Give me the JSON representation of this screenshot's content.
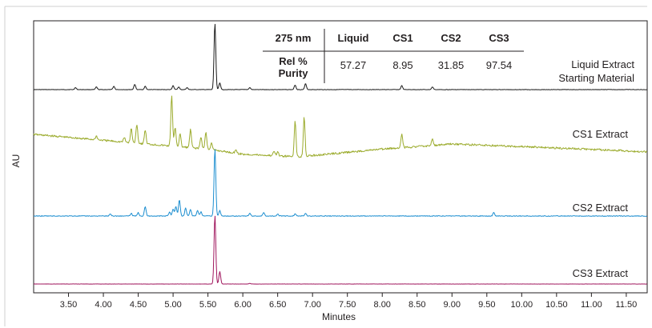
{
  "chart_data": {
    "type": "line",
    "xlabel": "Minutes",
    "ylabel": "AU",
    "xlim": [
      3.0,
      11.8
    ],
    "x_ticks": [
      "3.50",
      "4.00",
      "4.50",
      "5.00",
      "5.50",
      "6.00",
      "6.50",
      "7.00",
      "7.50",
      "8.00",
      "8.50",
      "9.00",
      "9.50",
      "10.00",
      "10.50",
      "11.00",
      "11.50"
    ],
    "x_tick_values": [
      3.5,
      4.0,
      4.5,
      5.0,
      5.5,
      6.0,
      6.5,
      7.0,
      7.5,
      8.0,
      8.5,
      9.0,
      9.5,
      10.0,
      10.5,
      11.0,
      11.5
    ],
    "table": {
      "wavelength": "275 nm",
      "columns": [
        "Liquid",
        "CS1",
        "CS2",
        "CS3"
      ],
      "row_label_line1": "Rel %",
      "row_label_line2": "Purity",
      "values": [
        "57.27",
        "8.95",
        "31.85",
        "97.54"
      ]
    },
    "series": [
      {
        "name": "Liquid Extract",
        "name_line2": "Starting Material",
        "color": "#1a1a1a",
        "baseline": [
          [
            3.0,
            0
          ],
          [
            11.8,
            0
          ]
        ],
        "peaks": [
          [
            3.6,
            0.03
          ],
          [
            3.9,
            0.04
          ],
          [
            4.15,
            0.05
          ],
          [
            4.45,
            0.08
          ],
          [
            4.6,
            0.05
          ],
          [
            5.0,
            0.06
          ],
          [
            5.08,
            0.04
          ],
          [
            5.2,
            0.03
          ],
          [
            5.6,
            1.0
          ],
          [
            5.67,
            0.1
          ],
          [
            6.1,
            0.03
          ],
          [
            6.75,
            0.07
          ],
          [
            6.9,
            0.09
          ],
          [
            8.28,
            0.06
          ],
          [
            8.72,
            0.04
          ]
        ]
      },
      {
        "name": "CS1 Extract",
        "color": "#9bab2c",
        "baseline": [
          [
            3.0,
            0.35
          ],
          [
            4.4,
            0.22
          ],
          [
            5.5,
            0.12
          ],
          [
            6.0,
            0.04
          ],
          [
            6.8,
            0.0
          ],
          [
            8.0,
            0.12
          ],
          [
            9.0,
            0.2
          ],
          [
            10.0,
            0.16
          ],
          [
            11.8,
            0.08
          ]
        ],
        "peaks": [
          [
            3.9,
            0.06
          ],
          [
            4.3,
            0.07
          ],
          [
            4.4,
            0.22
          ],
          [
            4.48,
            0.3
          ],
          [
            4.6,
            0.22
          ],
          [
            4.98,
            0.78
          ],
          [
            5.03,
            0.3
          ],
          [
            5.1,
            0.2
          ],
          [
            5.25,
            0.28
          ],
          [
            5.4,
            0.18
          ],
          [
            5.47,
            0.26
          ],
          [
            5.55,
            0.1
          ],
          [
            5.9,
            0.06
          ],
          [
            6.45,
            0.08
          ],
          [
            6.5,
            0.06
          ],
          [
            6.75,
            0.56
          ],
          [
            6.88,
            0.62
          ],
          [
            8.28,
            0.22
          ],
          [
            8.72,
            0.1
          ]
        ]
      },
      {
        "name": "CS2 Extract",
        "color": "#1c8ed0",
        "baseline": [
          [
            3.0,
            0
          ],
          [
            11.8,
            0
          ]
        ],
        "peaks": [
          [
            4.1,
            0.03
          ],
          [
            4.4,
            0.04
          ],
          [
            4.5,
            0.05
          ],
          [
            4.6,
            0.14
          ],
          [
            4.95,
            0.06
          ],
          [
            5.0,
            0.1
          ],
          [
            5.04,
            0.14
          ],
          [
            5.09,
            0.24
          ],
          [
            5.18,
            0.12
          ],
          [
            5.25,
            0.1
          ],
          [
            5.35,
            0.08
          ],
          [
            5.4,
            0.06
          ],
          [
            5.6,
            1.0
          ],
          [
            5.67,
            0.08
          ],
          [
            6.1,
            0.04
          ],
          [
            6.3,
            0.05
          ],
          [
            6.5,
            0.03
          ],
          [
            6.75,
            0.03
          ],
          [
            6.9,
            0.04
          ],
          [
            9.6,
            0.05
          ]
        ]
      },
      {
        "name": "CS3 Extract",
        "color": "#a0175e",
        "baseline": [
          [
            3.0,
            0
          ],
          [
            11.8,
            0
          ]
        ],
        "peaks": [
          [
            5.6,
            1.0
          ],
          [
            5.67,
            0.18
          ],
          [
            6.1,
            0.01
          ]
        ]
      }
    ]
  }
}
